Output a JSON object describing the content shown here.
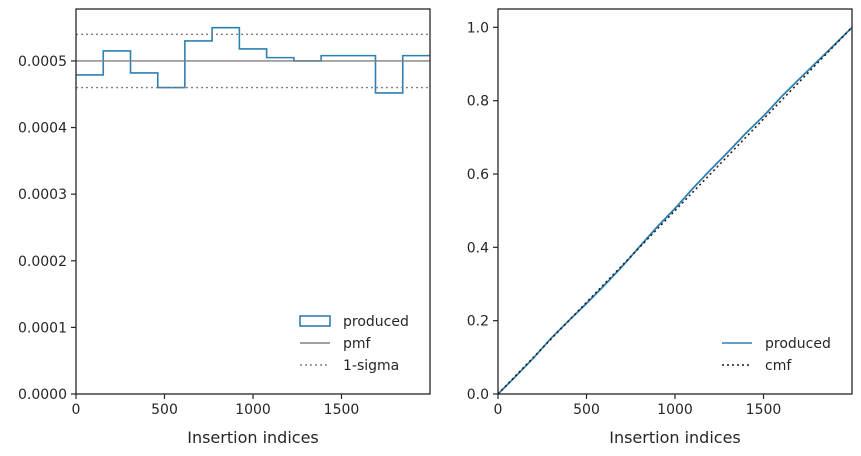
{
  "chart_data": [
    {
      "type": "step",
      "xlabel": "Insertion indices",
      "ylabel": "",
      "xlim": [
        0,
        2000
      ],
      "ylim": [
        0,
        0.000578
      ],
      "xticks": [
        0,
        500,
        1000,
        1500
      ],
      "xtick_labels": [
        "0",
        "500",
        "1000",
        "1500"
      ],
      "yticks": [
        0,
        0.0001,
        0.0002,
        0.0003,
        0.0004,
        0.0005
      ],
      "ytick_labels": [
        "0.0000",
        "0.0001",
        "0.0002",
        "0.0003",
        "0.0004",
        "0.0005"
      ],
      "grid": false,
      "legend_position": "lower-right",
      "series": [
        {
          "name": "produced",
          "style": "step-histogram",
          "color": "#2f7fb2",
          "bin_edges": [
            0,
            154,
            308,
            462,
            615,
            769,
            923,
            1077,
            1231,
            1385,
            1538,
            1692,
            1846,
            2000
          ],
          "values": [
            0.000479,
            0.000515,
            0.000482,
            0.00046,
            0.00053,
            0.00055,
            0.000518,
            0.000505,
            0.0005,
            0.000508,
            0.000508,
            0.000452,
            0.000508
          ]
        },
        {
          "name": "pmf",
          "style": "solid",
          "color": "#808080",
          "value": 0.0005
        },
        {
          "name": "1-sigma",
          "style": "dotted",
          "color": "#808080",
          "values": [
            0.00046,
            0.00054
          ]
        }
      ]
    },
    {
      "type": "line",
      "xlabel": "Insertion indices",
      "ylabel": "",
      "xlim": [
        0,
        2000
      ],
      "ylim": [
        0,
        1.05
      ],
      "xticks": [
        0,
        500,
        1000,
        1500
      ],
      "xtick_labels": [
        "0",
        "500",
        "1000",
        "1500"
      ],
      "yticks": [
        0,
        0.2,
        0.4,
        0.6,
        0.8,
        1.0
      ],
      "ytick_labels": [
        "0.0",
        "0.2",
        "0.4",
        "0.6",
        "0.8",
        "1.0"
      ],
      "grid": false,
      "legend_position": "lower-right",
      "series": [
        {
          "name": "produced",
          "style": "solid",
          "color": "#2f7fb2",
          "x": [
            0,
            100,
            200,
            300,
            400,
            500,
            600,
            700,
            800,
            900,
            1000,
            1100,
            1200,
            1300,
            1400,
            1500,
            1600,
            1700,
            1800,
            1900,
            2000
          ],
          "y": [
            0,
            0.048,
            0.098,
            0.152,
            0.2,
            0.247,
            0.296,
            0.347,
            0.402,
            0.456,
            0.506,
            0.56,
            0.611,
            0.66,
            0.711,
            0.758,
            0.81,
            0.858,
            0.905,
            0.952,
            1.0
          ]
        },
        {
          "name": "cmf",
          "style": "dotted",
          "color": "#1a1a1a",
          "x": [
            0,
            2000
          ],
          "y": [
            0,
            1.0
          ]
        }
      ]
    }
  ]
}
